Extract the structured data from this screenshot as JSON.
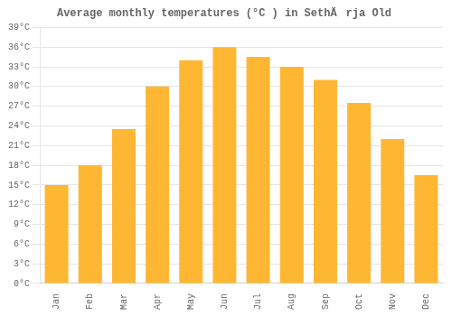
{
  "chart_data": {
    "type": "bar",
    "title": "Average monthly temperatures (°C ) in SethÄrja Old",
    "categories": [
      "Jan",
      "Feb",
      "Mar",
      "Apr",
      "May",
      "Jun",
      "Jul",
      "Aug",
      "Sep",
      "Oct",
      "Nov",
      "Dec"
    ],
    "values": [
      15,
      18,
      23.5,
      30,
      34,
      36,
      34.5,
      33,
      31,
      27.5,
      22,
      16.5
    ],
    "color": "#FFB733",
    "ylim": [
      0,
      39
    ],
    "yticks": [
      {
        "value": 0,
        "label": "0°C"
      },
      {
        "value": 3,
        "label": "3°C"
      },
      {
        "value": 6,
        "label": "6°C"
      },
      {
        "value": 9,
        "label": "9°C"
      },
      {
        "value": 12,
        "label": "12°C"
      },
      {
        "value": 15,
        "label": "15°C"
      },
      {
        "value": 18,
        "label": "18°C"
      },
      {
        "value": 21,
        "label": "21°C"
      },
      {
        "value": 24,
        "label": "24°C"
      },
      {
        "value": 27,
        "label": "27°C"
      },
      {
        "value": 30,
        "label": "30°C"
      },
      {
        "value": 33,
        "label": "33°C"
      },
      {
        "value": 36,
        "label": "36°C"
      },
      {
        "value": 39,
        "label": "39°C"
      }
    ],
    "grid": true
  }
}
